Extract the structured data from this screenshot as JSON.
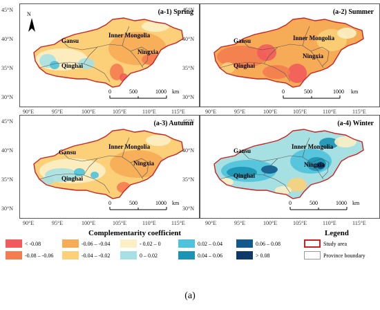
{
  "panels": [
    {
      "title": "(a-1)  Spring",
      "theme": "spring"
    },
    {
      "title": "(a-2)  Summer",
      "theme": "summer"
    },
    {
      "title": "(a-3)  Autumn",
      "theme": "autumn"
    },
    {
      "title": "(a-4)  Winter",
      "theme": "winter"
    }
  ],
  "province_labels": {
    "gansu": "Gansu",
    "inner_mongolia": "Inner Mongolia",
    "ningxia": "Ningxia",
    "qinghai": "Qinghai"
  },
  "lat_labels": [
    "45°N",
    "40°N",
    "35°N",
    "30°N"
  ],
  "lon_labels": [
    "90°E",
    "95°E",
    "100°E",
    "105°E",
    "110°E",
    "115°E"
  ],
  "scalebar": {
    "zero": "0",
    "mid": "500",
    "max": "1000",
    "unit": "km"
  },
  "north_arrow": "N",
  "legend": {
    "coefficient_title": "Complementarity coefficient",
    "legend_title": "Legend",
    "classes": [
      {
        "label": "< -0.08",
        "color": "#f25b5b"
      },
      {
        "label": "-0.08 – -0.06",
        "color": "#f47c50"
      },
      {
        "label": "-0.06 – -0.04",
        "color": "#f6ab57"
      },
      {
        "label": "-0.04 – -0.02",
        "color": "#fbd079"
      },
      {
        "label": "- 0.02 – 0",
        "color": "#fdefc5"
      },
      {
        "label": "0 – 0.02",
        "color": "#a7e0e2"
      },
      {
        "label": "0.02 – 0.04",
        "color": "#4fc2dc"
      },
      {
        "label": "0.04 – 0.06",
        "color": "#1b93b5"
      },
      {
        "label": "0.06 – 0.08",
        "color": "#135a8c"
      },
      {
        "label": "> 0.08",
        "color": "#0d3a66"
      }
    ],
    "study_area": "Study area",
    "province_boundary": "Province boundary",
    "study_area_color": "#cc1f1f",
    "province_boundary_color": "#999999"
  },
  "caption": "(a)"
}
